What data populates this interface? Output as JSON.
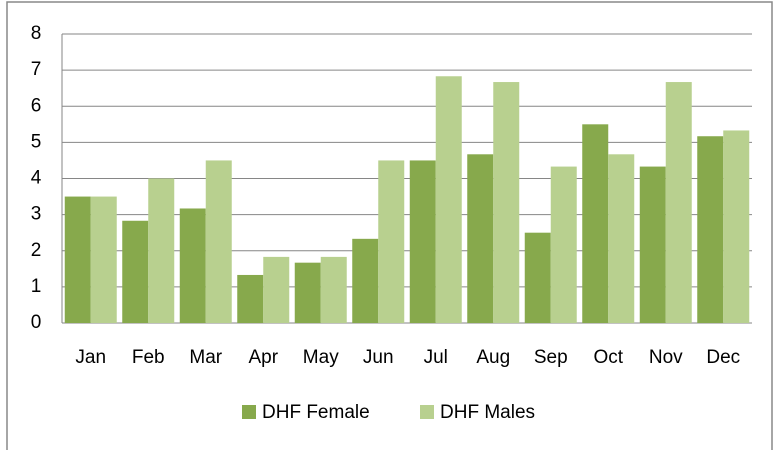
{
  "chart_data": {
    "type": "bar",
    "categories": [
      "Jan",
      "Feb",
      "Mar",
      "Apr",
      "May",
      "Jun",
      "Jul",
      "Aug",
      "Sep",
      "Oct",
      "Nov",
      "Dec"
    ],
    "series": [
      {
        "name": "DHF Female",
        "color": "#87a94c",
        "values": [
          3.5,
          2.83,
          3.17,
          1.33,
          1.67,
          2.33,
          4.5,
          4.67,
          2.5,
          5.5,
          4.33,
          5.17
        ]
      },
      {
        "name": "DHF Males",
        "color": "#b8d08f",
        "values": [
          3.5,
          4.0,
          4.5,
          1.83,
          1.83,
          4.5,
          6.83,
          6.67,
          4.33,
          4.67,
          6.67,
          5.33
        ]
      }
    ],
    "ylim": [
      0,
      8
    ],
    "yticks": [
      0,
      1,
      2,
      3,
      4,
      5,
      6,
      7,
      8
    ],
    "grid": true,
    "legend": "bottom"
  }
}
